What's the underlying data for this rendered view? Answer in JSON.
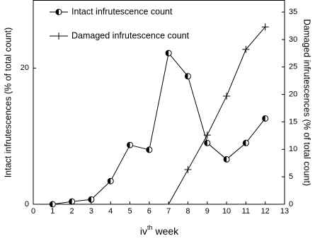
{
  "chart_data": {
    "type": "line",
    "x_label": {
      "base": "iv",
      "sup": "th",
      "rest": "week"
    },
    "y_label": "Intact infrutescences (% of total count)",
    "y2_label": "Damaged infrutescences (% of total count)",
    "x": [
      1,
      2,
      3,
      4,
      5,
      6,
      7,
      8,
      9,
      10,
      11,
      12
    ],
    "xlim": [
      0,
      13
    ],
    "xticks": [
      0,
      1,
      2,
      3,
      4,
      5,
      6,
      7,
      8,
      9,
      10,
      11,
      12,
      13
    ],
    "ylim": [
      0,
      30
    ],
    "yticks": [
      0,
      20
    ],
    "y2lim": [
      0,
      37.2
    ],
    "y2ticks": [
      0,
      5,
      10,
      15,
      20,
      25,
      30,
      35
    ],
    "legend": "top-left",
    "series": [
      {
        "name": "Intact infrutescence count",
        "color": "#000000",
        "marker": "half-circle",
        "values": [
          0,
          0.4,
          0.7,
          3.4,
          8.7,
          8.0,
          22.2,
          18.8,
          9.0,
          6.6,
          9.0,
          12.6
        ]
      },
      {
        "name": "Damaged infrutescence count",
        "color": "#000000",
        "marker": "plus",
        "axis": "y2",
        "values": [
          null,
          null,
          null,
          null,
          null,
          null,
          0,
          6.3,
          12.6,
          19.7,
          28.2,
          32.3
        ]
      }
    ]
  }
}
